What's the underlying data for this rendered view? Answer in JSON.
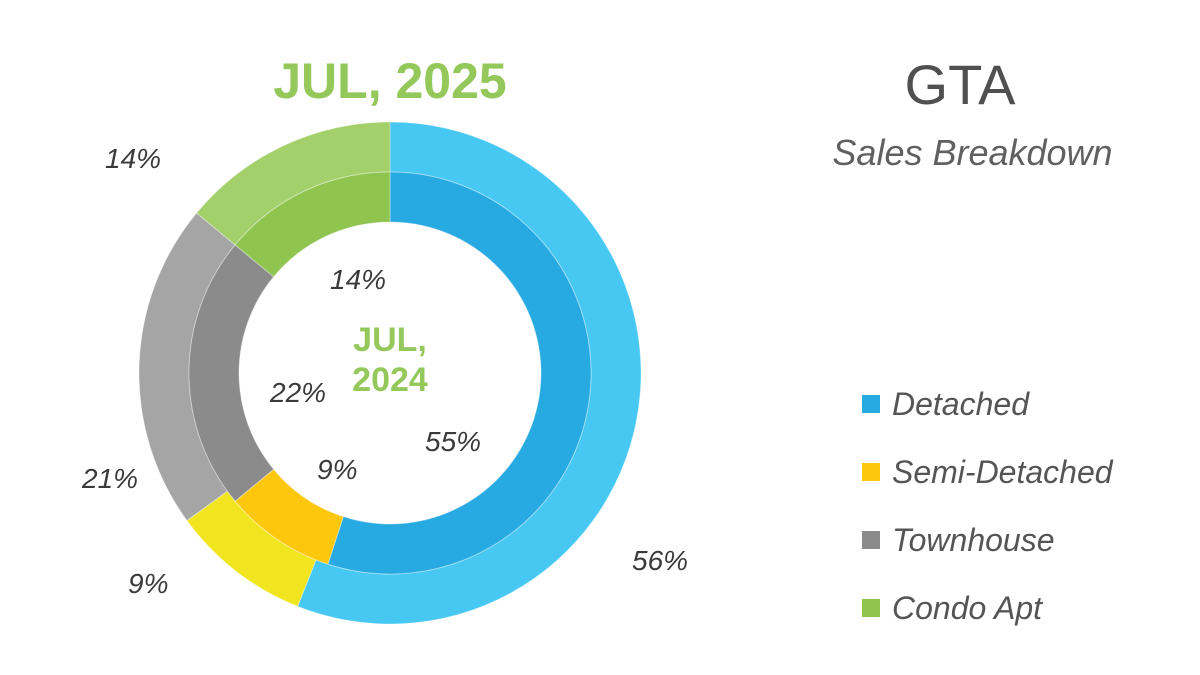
{
  "title": "GTA",
  "subtitle": "Sales Breakdown",
  "chart_data": {
    "type": "pie",
    "variant": "nested-donut",
    "categories": [
      "Detached",
      "Semi-Detached",
      "Townhouse",
      "Condo Apt"
    ],
    "series": [
      {
        "name": "JUL, 2025",
        "ring": "outer",
        "values": [
          56,
          9,
          21,
          14
        ],
        "colors": [
          "#46c8f3",
          "#f0e51f",
          "#a5a5a5",
          "#a4d06c"
        ]
      },
      {
        "name": "JUL, 2024",
        "ring": "inner",
        "values": [
          55,
          9,
          22,
          14
        ],
        "colors": [
          "#27a9e1",
          "#fcc70c",
          "#8b8b8b",
          "#8fc44f"
        ]
      }
    ],
    "outer_labels": [
      "56%",
      "9%",
      "21%",
      "14%"
    ],
    "inner_labels": [
      "55%",
      "9%",
      "22%",
      "14%"
    ],
    "outer_year": "JUL, 2025",
    "inner_year_line1": "JUL,",
    "inner_year_line2": "2024",
    "legend": [
      {
        "label": "Detached",
        "color": "#27a9e1"
      },
      {
        "label": "Semi-Detached",
        "color": "#fcc70c"
      },
      {
        "label": "Townhouse",
        "color": "#8b8b8b"
      },
      {
        "label": "Condo Apt",
        "color": "#8fc44f"
      }
    ],
    "legend_position": "right"
  }
}
